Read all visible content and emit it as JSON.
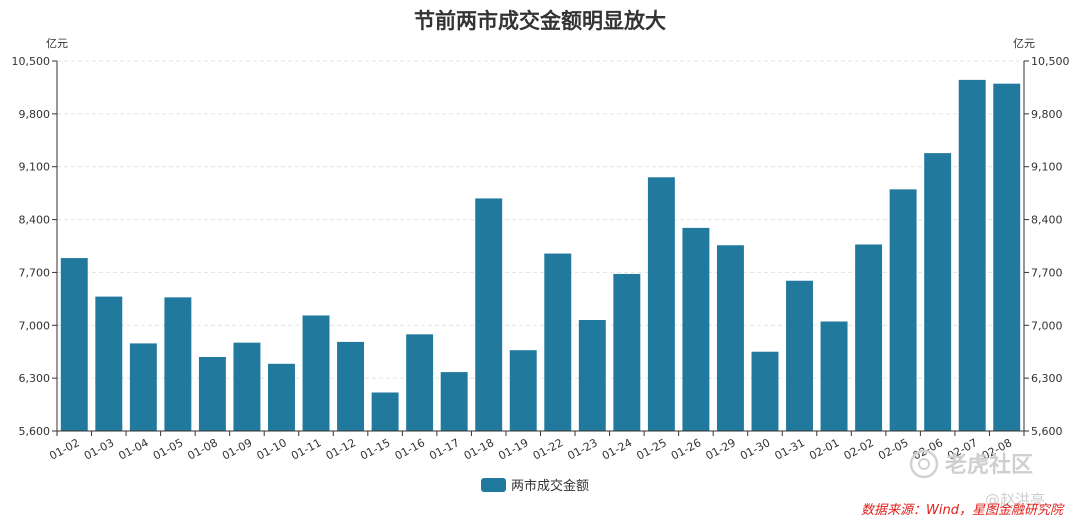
{
  "page": {
    "source": "数据来源：Wind，星图金融研究院",
    "watermark_brand": "老虎社区",
    "watermark_user": "@赵洪亮"
  },
  "chart_data": {
    "type": "bar",
    "title": "节前两市成交金额明显放大",
    "ylabel_left": "亿元",
    "ylabel_right": "亿元",
    "ylim": [
      5600,
      10500
    ],
    "yticks": [
      "5,600",
      "6,300",
      "7,000",
      "7,700",
      "8,400",
      "9,100",
      "9,800",
      "10,500"
    ],
    "ytick_values": [
      5600,
      6300,
      7000,
      7700,
      8400,
      9100,
      9800,
      10500
    ],
    "categories": [
      "01-02",
      "01-03",
      "01-04",
      "01-05",
      "01-08",
      "01-09",
      "01-10",
      "01-11",
      "01-12",
      "01-15",
      "01-16",
      "01-17",
      "01-18",
      "01-19",
      "01-22",
      "01-23",
      "01-24",
      "01-25",
      "01-26",
      "01-29",
      "01-30",
      "01-31",
      "02-01",
      "02-02",
      "02-05",
      "02-06",
      "02-07",
      "02-08"
    ],
    "series": [
      {
        "name": "两市成交金额",
        "color": "#21799e",
        "values": [
          7890,
          7380,
          6760,
          7370,
          6580,
          6770,
          6490,
          7130,
          6780,
          6110,
          6880,
          6380,
          8680,
          6670,
          7950,
          7070,
          7680,
          8960,
          8290,
          8060,
          6650,
          7590,
          7050,
          8070,
          8800,
          9280,
          10250,
          10200
        ]
      }
    ],
    "grid": true,
    "legend_position": "bottom-center"
  }
}
